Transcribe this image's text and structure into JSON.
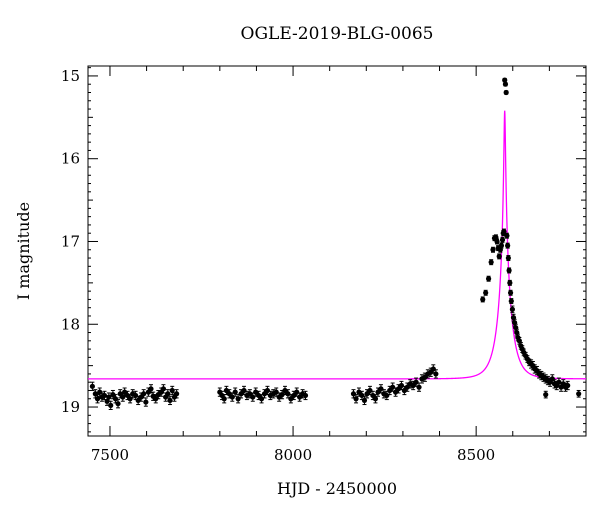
{
  "chart_data": {
    "type": "scatter",
    "title": "OGLE-2019-BLG-0065",
    "xlabel": "HJD - 2450000",
    "ylabel": "I magnitude",
    "xlim": [
      7440,
      8800
    ],
    "ylim": [
      19.35,
      14.88
    ],
    "y_inverted": true,
    "x_major_ticks": [
      7500,
      8000,
      8500
    ],
    "y_major_ticks": [
      15,
      16,
      17,
      18,
      19
    ],
    "grid": false,
    "legend": "none",
    "colors": {
      "data": "#000000",
      "model": "#ff00ff"
    },
    "series": [
      {
        "kind": "data-points-with-error-bars",
        "points": [
          [
            7452,
            18.75,
            0.05
          ],
          [
            7460,
            18.84,
            0.05
          ],
          [
            7466,
            18.9,
            0.05
          ],
          [
            7472,
            18.82,
            0.05
          ],
          [
            7478,
            18.88,
            0.05
          ],
          [
            7485,
            18.86,
            0.05
          ],
          [
            7492,
            18.93,
            0.05
          ],
          [
            7497,
            18.88,
            0.05
          ],
          [
            7502,
            18.98,
            0.05
          ],
          [
            7508,
            18.85,
            0.05
          ],
          [
            7515,
            18.9,
            0.05
          ],
          [
            7522,
            18.96,
            0.05
          ],
          [
            7528,
            18.84,
            0.05
          ],
          [
            7535,
            18.88,
            0.05
          ],
          [
            7540,
            18.82,
            0.05
          ],
          [
            7548,
            18.86,
            0.05
          ],
          [
            7555,
            18.9,
            0.05
          ],
          [
            7562,
            18.84,
            0.05
          ],
          [
            7570,
            18.86,
            0.05
          ],
          [
            7577,
            18.92,
            0.05
          ],
          [
            7585,
            18.88,
            0.05
          ],
          [
            7592,
            18.84,
            0.05
          ],
          [
            7598,
            18.94,
            0.05
          ],
          [
            7605,
            18.82,
            0.05
          ],
          [
            7612,
            18.78,
            0.05
          ],
          [
            7618,
            18.87,
            0.05
          ],
          [
            7625,
            18.9,
            0.05
          ],
          [
            7632,
            18.85,
            0.05
          ],
          [
            7640,
            18.82,
            0.05
          ],
          [
            7646,
            18.78,
            0.05
          ],
          [
            7652,
            18.88,
            0.05
          ],
          [
            7658,
            18.84,
            0.05
          ],
          [
            7664,
            18.92,
            0.05
          ],
          [
            7670,
            18.8,
            0.05
          ],
          [
            7676,
            18.88,
            0.05
          ],
          [
            7682,
            18.84,
            0.05
          ],
          [
            7800,
            18.82,
            0.05
          ],
          [
            7806,
            18.86,
            0.05
          ],
          [
            7812,
            18.9,
            0.05
          ],
          [
            7818,
            18.8,
            0.05
          ],
          [
            7826,
            18.84,
            0.05
          ],
          [
            7834,
            18.88,
            0.05
          ],
          [
            7842,
            18.82,
            0.05
          ],
          [
            7850,
            18.9,
            0.05
          ],
          [
            7858,
            18.84,
            0.05
          ],
          [
            7866,
            18.8,
            0.05
          ],
          [
            7874,
            18.86,
            0.05
          ],
          [
            7882,
            18.84,
            0.05
          ],
          [
            7890,
            18.88,
            0.05
          ],
          [
            7898,
            18.82,
            0.05
          ],
          [
            7906,
            18.86,
            0.05
          ],
          [
            7914,
            18.9,
            0.05
          ],
          [
            7922,
            18.84,
            0.05
          ],
          [
            7930,
            18.8,
            0.05
          ],
          [
            7938,
            18.86,
            0.05
          ],
          [
            7946,
            18.84,
            0.05
          ],
          [
            7954,
            18.82,
            0.05
          ],
          [
            7962,
            18.88,
            0.05
          ],
          [
            7970,
            18.85,
            0.05
          ],
          [
            7978,
            18.8,
            0.05
          ],
          [
            7986,
            18.84,
            0.05
          ],
          [
            7994,
            18.9,
            0.05
          ],
          [
            8002,
            18.86,
            0.05
          ],
          [
            8010,
            18.82,
            0.05
          ],
          [
            8018,
            18.88,
            0.05
          ],
          [
            8026,
            18.84,
            0.05
          ],
          [
            8034,
            18.86,
            0.05
          ],
          [
            8165,
            18.84,
            0.05
          ],
          [
            8172,
            18.9,
            0.05
          ],
          [
            8180,
            18.82,
            0.05
          ],
          [
            8188,
            18.86,
            0.05
          ],
          [
            8195,
            18.92,
            0.05
          ],
          [
            8202,
            18.84,
            0.05
          ],
          [
            8210,
            18.8,
            0.05
          ],
          [
            8218,
            18.86,
            0.05
          ],
          [
            8225,
            18.9,
            0.05
          ],
          [
            8232,
            18.82,
            0.05
          ],
          [
            8240,
            18.78,
            0.05
          ],
          [
            8248,
            18.84,
            0.05
          ],
          [
            8256,
            18.86,
            0.05
          ],
          [
            8264,
            18.8,
            0.05
          ],
          [
            8272,
            18.76,
            0.05
          ],
          [
            8280,
            18.82,
            0.05
          ],
          [
            8288,
            18.78,
            0.05
          ],
          [
            8296,
            18.74,
            0.05
          ],
          [
            8304,
            18.8,
            0.05
          ],
          [
            8312,
            18.76,
            0.05
          ],
          [
            8320,
            18.72,
            0.05
          ],
          [
            8328,
            18.74,
            0.05
          ],
          [
            8336,
            18.7,
            0.05
          ],
          [
            8344,
            18.76,
            0.05
          ],
          [
            8352,
            18.66,
            0.05
          ],
          [
            8360,
            18.64,
            0.05
          ],
          [
            8368,
            18.6,
            0.05
          ],
          [
            8376,
            18.58,
            0.05
          ],
          [
            8383,
            18.54,
            0.05
          ],
          [
            8390,
            18.6,
            0.05
          ],
          [
            8518,
            17.7,
            0.03
          ],
          [
            8526,
            17.62,
            0.03
          ],
          [
            8534,
            17.45,
            0.03
          ],
          [
            8541,
            17.25,
            0.03
          ],
          [
            8546,
            17.1,
            0.03
          ],
          [
            8550,
            16.96,
            0.03
          ],
          [
            8554,
            16.95,
            0.03
          ],
          [
            8557,
            17.0,
            0.03
          ],
          [
            8560,
            17.08,
            0.03
          ],
          [
            8563,
            17.18,
            0.03
          ],
          [
            8566,
            17.1,
            0.03
          ],
          [
            8569,
            17.05,
            0.03
          ],
          [
            8572,
            16.98,
            0.03
          ],
          [
            8574,
            16.9,
            0.03
          ],
          [
            8576,
            16.88,
            0.03
          ],
          [
            8578,
            15.05,
            0.02
          ],
          [
            8580,
            15.1,
            0.02
          ],
          [
            8582,
            15.2,
            0.02
          ],
          [
            8584,
            16.93,
            0.03
          ],
          [
            8586,
            17.05,
            0.03
          ],
          [
            8588,
            17.2,
            0.03
          ],
          [
            8590,
            17.35,
            0.03
          ],
          [
            8592,
            17.5,
            0.03
          ],
          [
            8594,
            17.62,
            0.03
          ],
          [
            8596,
            17.72,
            0.03
          ],
          [
            8599,
            17.82,
            0.04
          ],
          [
            8602,
            17.92,
            0.04
          ],
          [
            8605,
            17.98,
            0.04
          ],
          [
            8608,
            18.04,
            0.04
          ],
          [
            8611,
            18.1,
            0.04
          ],
          [
            8614,
            18.16,
            0.04
          ],
          [
            8618,
            18.2,
            0.04
          ],
          [
            8622,
            18.26,
            0.04
          ],
          [
            8626,
            18.3,
            0.04
          ],
          [
            8630,
            18.34,
            0.04
          ],
          [
            8635,
            18.38,
            0.04
          ],
          [
            8640,
            18.42,
            0.04
          ],
          [
            8645,
            18.46,
            0.04
          ],
          [
            8650,
            18.48,
            0.05
          ],
          [
            8655,
            18.5,
            0.05
          ],
          [
            8660,
            18.54,
            0.05
          ],
          [
            8666,
            18.56,
            0.05
          ],
          [
            8672,
            18.6,
            0.05
          ],
          [
            8678,
            18.62,
            0.05
          ],
          [
            8684,
            18.64,
            0.05
          ],
          [
            8690,
            18.66,
            0.05
          ],
          [
            8696,
            18.68,
            0.05
          ],
          [
            8702,
            18.7,
            0.05
          ],
          [
            8708,
            18.66,
            0.05
          ],
          [
            8714,
            18.72,
            0.05
          ],
          [
            8720,
            18.74,
            0.05
          ],
          [
            8726,
            18.7,
            0.05
          ],
          [
            8732,
            18.76,
            0.05
          ],
          [
            8738,
            18.72,
            0.05
          ],
          [
            8744,
            18.76,
            0.05
          ],
          [
            8750,
            18.74,
            0.05
          ],
          [
            8690,
            18.85,
            0.04
          ],
          [
            8780,
            18.84,
            0.04
          ]
        ]
      },
      {
        "kind": "model-curve",
        "baseline": 18.66,
        "peak_x": 8578,
        "peak_mag": 15.42,
        "u0": 0.055,
        "tE": 33
      }
    ]
  }
}
